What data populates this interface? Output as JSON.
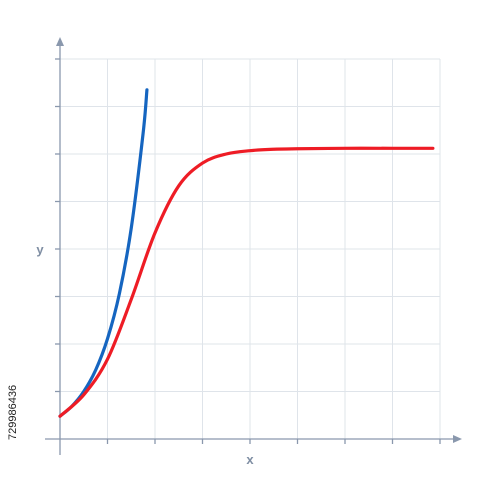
{
  "chart_data": {
    "type": "line",
    "title": "",
    "xlabel": "x",
    "ylabel": "y",
    "xlim": [
      0,
      8
    ],
    "ylim": [
      0,
      8
    ],
    "grid": true,
    "series": [
      {
        "color": "#1565c0",
        "x": [
          0,
          0.25,
          0.5,
          0.75,
          1.0,
          1.25,
          1.5,
          1.75,
          1.83
        ],
        "y": [
          0.48,
          0.69,
          1.0,
          1.45,
          2.11,
          3.06,
          4.44,
          6.44,
          7.35
        ]
      },
      {
        "color": "#ee1c25",
        "x": [
          0,
          0.5,
          1.0,
          1.5,
          2.0,
          2.5,
          3.0,
          3.5,
          4.0,
          4.5,
          5.0,
          6.0,
          7.0,
          7.85
        ],
        "y": [
          0.48,
          0.93,
          1.68,
          2.94,
          4.34,
          5.33,
          5.81,
          6.0,
          6.07,
          6.1,
          6.11,
          6.12,
          6.12,
          6.12
        ]
      }
    ],
    "colors": {
      "grid": "#dfe4ea",
      "axis": "#8a98ad"
    }
  },
  "watermark": {
    "side_text": "729986436"
  }
}
